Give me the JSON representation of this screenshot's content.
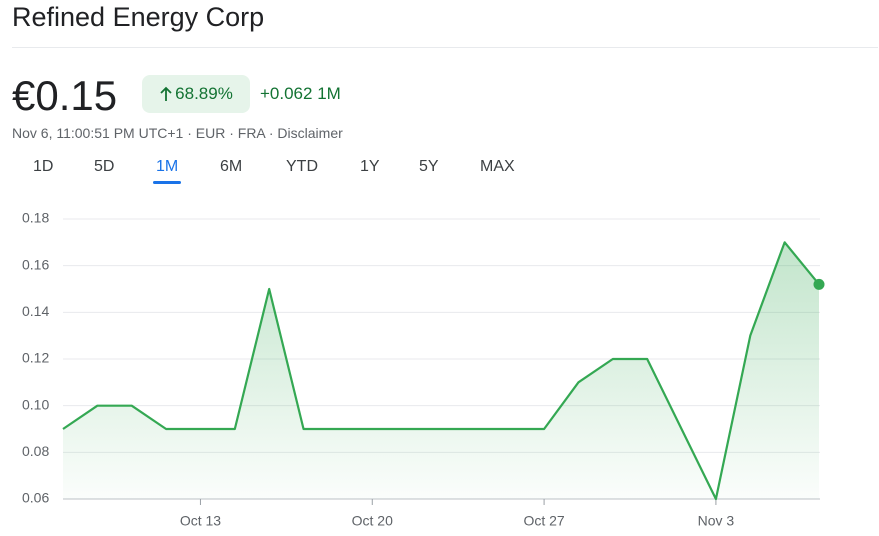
{
  "header": {
    "title": "Refined Energy Corp",
    "price": "€0.15",
    "change_percent": "68.89%",
    "change_abs": "+0.062 1M",
    "meta": "Nov 6, 11:00:51 PM UTC+1 · EUR · FRA · Disclaimer"
  },
  "tabs": {
    "items": [
      "1D",
      "5D",
      "1M",
      "6M",
      "YTD",
      "1Y",
      "5Y",
      "MAX"
    ],
    "selected": 2
  },
  "chart_data": {
    "type": "area",
    "x": [
      0,
      1,
      2,
      3,
      4,
      5,
      6,
      7,
      8,
      9,
      10,
      11,
      12,
      13,
      14,
      15,
      16,
      17,
      18,
      19,
      20,
      21,
      22
    ],
    "series": [
      {
        "color": "#34a853",
        "values": [
          0.09,
          0.1,
          0.1,
          0.09,
          0.09,
          0.09,
          0.15,
          0.09,
          0.09,
          0.09,
          0.09,
          0.09,
          0.09,
          0.09,
          0.09,
          0.11,
          0.12,
          0.12,
          0.09,
          0.06,
          0.13,
          0.17,
          0.152
        ]
      }
    ],
    "xlim": [
      0,
      22
    ],
    "xticks": [
      {
        "value": 4,
        "label": "Oct 13"
      },
      {
        "value": 9,
        "label": "Oct 20"
      },
      {
        "value": 14,
        "label": "Oct 27"
      },
      {
        "value": 19,
        "label": "Nov 3"
      }
    ],
    "ylim": [
      0.06,
      0.18
    ],
    "yticks": [
      0.06,
      0.08,
      {
        "value": 0.1,
        "label": "0.10"
      },
      0.12,
      0.14,
      0.16,
      0.18
    ],
    "grid": true
  }
}
